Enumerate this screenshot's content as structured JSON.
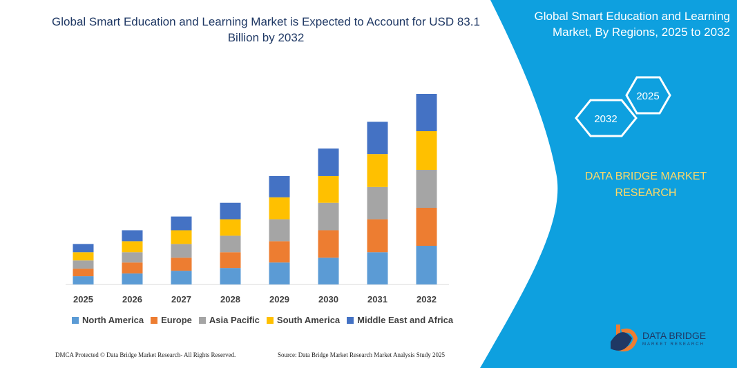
{
  "chart_data": {
    "type": "stacked-bar",
    "title": "Global Smart Education and Learning Market is Expected to Account for USD 83.1 Billion by 2032",
    "categories": [
      "2025",
      "2026",
      "2027",
      "2028",
      "2029",
      "2030",
      "2031",
      "2032"
    ],
    "series": [
      {
        "name": "North America",
        "color": "#5b9bd5",
        "values": [
          3.6,
          4.8,
          6.0,
          7.2,
          9.6,
          11.7,
          14.1,
          16.9
        ]
      },
      {
        "name": "Europe",
        "color": "#ed7d31",
        "values": [
          3.3,
          4.8,
          5.7,
          6.9,
          9.3,
          12.0,
          14.4,
          16.6
        ]
      },
      {
        "name": "Asia Pacific",
        "color": "#a5a5a5",
        "values": [
          3.6,
          4.5,
          6.0,
          7.2,
          9.6,
          12.0,
          14.1,
          16.6
        ]
      },
      {
        "name": "South America",
        "color": "#ffc000",
        "values": [
          3.6,
          4.8,
          6.0,
          7.2,
          9.6,
          11.7,
          14.4,
          16.9
        ]
      },
      {
        "name": "Middle East and Africa",
        "color": "#4472c4",
        "values": [
          3.6,
          4.8,
          6.0,
          7.2,
          9.3,
          12.0,
          14.1,
          16.3
        ]
      }
    ]
  },
  "panel": {
    "title": "Global Smart Education and Learning Market, By Regions, 2025 to 2032",
    "hexagons": [
      "2032",
      "2025"
    ],
    "brand": "DATA BRIDGE MARKET RESEARCH",
    "logo": "DATA BRIDGE",
    "logo_sub": "MARKET RESEARCH"
  },
  "footer": {
    "left": "DMCA Protected © Data Bridge Market Research- All Rights Reserved.",
    "right": "Source: Data Bridge Market Research Market Analysis Study 2025"
  }
}
